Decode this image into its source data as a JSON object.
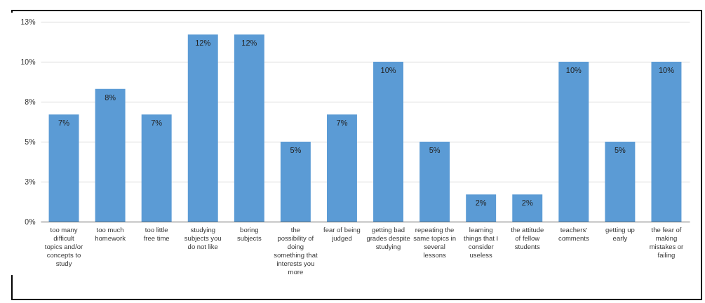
{
  "chart_data": {
    "type": "bar",
    "categories": [
      "too many difficult topics and/or concepts to study",
      "too much homework",
      "too little free time",
      "studying subjects you do not like",
      "boring subjects",
      "the possibility of doing something that interests you more",
      "fear of being judged",
      "getting bad grades despite studying",
      "repeating the same topics in several lessons",
      "learning things that I consider useless",
      "the attitude of fellow students",
      "teachers' comments",
      "getting up early",
      "the fear of making mistakes or failing"
    ],
    "values": [
      6.7,
      8.3,
      6.7,
      11.7,
      11.7,
      5,
      6.7,
      10,
      5,
      1.7,
      1.7,
      10,
      5,
      10
    ],
    "value_labels": [
      "7%",
      "8%",
      "7%",
      "12%",
      "12%",
      "5%",
      "7%",
      "10%",
      "5%",
      "2%",
      "2%",
      "10%",
      "5%",
      "10%"
    ],
    "color": "#5b9bd5",
    "ylim": [
      0,
      12.5
    ],
    "yticks": [
      {
        "value": 0,
        "label": "0%"
      },
      {
        "value": 2.5,
        "label": "3%"
      },
      {
        "value": 5,
        "label": "5%"
      },
      {
        "value": 7.5,
        "label": "8%"
      },
      {
        "value": 10,
        "label": "10%"
      },
      {
        "value": 12.5,
        "label": "13%"
      }
    ],
    "grid": "y"
  }
}
